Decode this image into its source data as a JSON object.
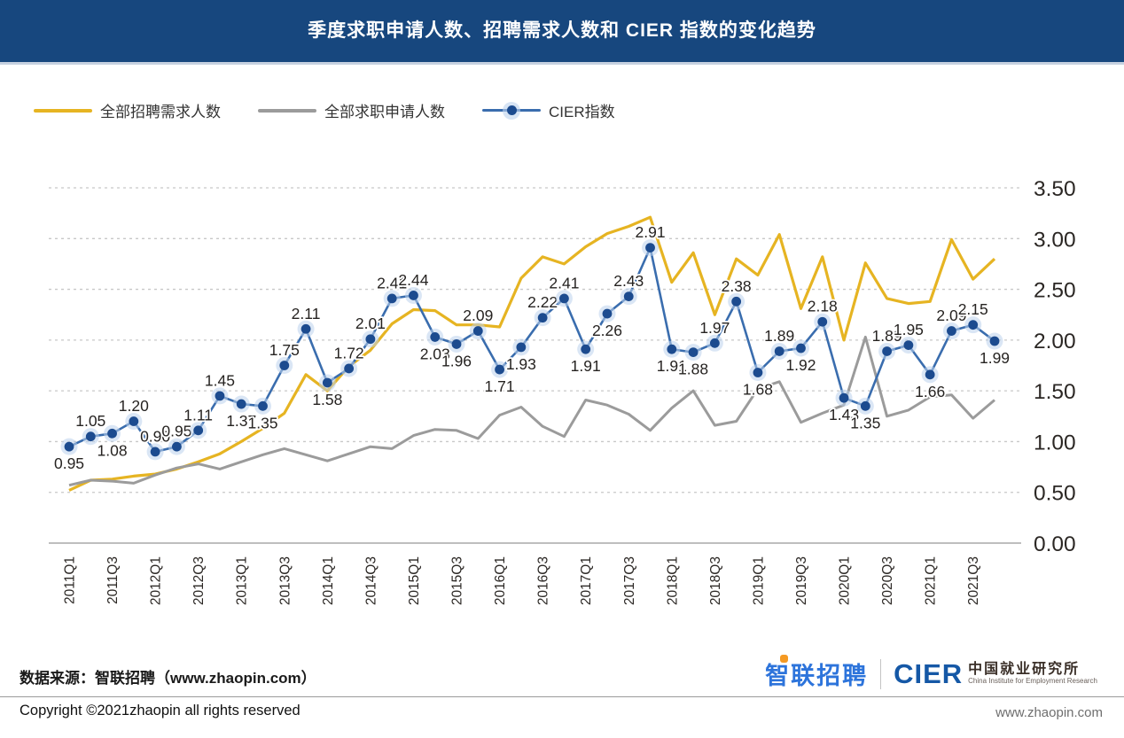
{
  "header": {
    "title": "季度求职申请人数、招聘需求人数和 CIER 指数的变化趋势",
    "bg_color": "#17477E"
  },
  "legend": {
    "position": "top-left",
    "items": [
      {
        "label": "全部招聘需求人数",
        "color": "#E6B422",
        "type": "line"
      },
      {
        "label": "全部求职申请人数",
        "color": "#9B9B9B",
        "type": "line"
      },
      {
        "label": "CIER指数",
        "color": "#3A6DAE",
        "marker_color": "#1C4B8F",
        "type": "line-marker"
      }
    ]
  },
  "chart_data": {
    "type": "line",
    "title": "季度求职申请人数、招聘需求人数和 CIER 指数的变化趋势",
    "categories": [
      "2011Q1",
      "2011Q2",
      "2011Q3",
      "2011Q4",
      "2012Q1",
      "2012Q2",
      "2012Q3",
      "2012Q4",
      "2013Q1",
      "2013Q2",
      "2013Q3",
      "2013Q4",
      "2014Q1",
      "2014Q2",
      "2014Q3",
      "2014Q4",
      "2015Q1",
      "2015Q2",
      "2015Q3",
      "2015Q4",
      "2016Q1",
      "2016Q2",
      "2016Q3",
      "2016Q4",
      "2017Q1",
      "2017Q2",
      "2017Q3",
      "2017Q4",
      "2018Q1",
      "2018Q2",
      "2018Q3",
      "2018Q4",
      "2019Q1",
      "2019Q2",
      "2019Q3",
      "2019Q4",
      "2020Q1",
      "2020Q2",
      "2020Q3",
      "2020Q4",
      "2021Q1",
      "2021Q2",
      "2021Q3",
      "2021Q4"
    ],
    "x_tick_every": 2,
    "ylim": [
      0,
      3.5
    ],
    "y_ticks": [
      {
        "value": 0.0,
        "label": "0.00"
      },
      {
        "value": 0.5,
        "label": "0.50"
      },
      {
        "value": 1.0,
        "label": "1.00"
      },
      {
        "value": 1.5,
        "label": "1.50"
      },
      {
        "value": 2.0,
        "label": "2.00"
      },
      {
        "value": 2.5,
        "label": "2.50"
      },
      {
        "value": 3.0,
        "label": "3.00"
      },
      {
        "value": 3.5,
        "label": "3.50"
      }
    ],
    "grid": "horizontal-dashed",
    "legend_position": "top-left",
    "series": [
      {
        "name": "全部招聘需求人数",
        "color": "#E6B422",
        "values": [
          0.52,
          0.62,
          0.63,
          0.66,
          0.68,
          0.73,
          0.8,
          0.88,
          1.0,
          1.13,
          1.28,
          1.66,
          1.5,
          1.74,
          1.9,
          2.16,
          2.3,
          2.29,
          2.15,
          2.15,
          2.13,
          2.61,
          2.82,
          2.75,
          2.92,
          3.05,
          3.12,
          3.21,
          2.57,
          2.86,
          2.25,
          2.8,
          2.64,
          3.04,
          2.31,
          2.82,
          2.0,
          2.76,
          2.41,
          2.36,
          2.38,
          2.99,
          2.6,
          2.8
        ]
      },
      {
        "name": "全部求职申请人数",
        "color": "#9B9B9B",
        "values": [
          0.57,
          0.62,
          0.61,
          0.59,
          0.67,
          0.74,
          0.78,
          0.73,
          0.8,
          0.87,
          0.93,
          0.87,
          0.81,
          0.88,
          0.95,
          0.93,
          1.06,
          1.12,
          1.11,
          1.03,
          1.26,
          1.34,
          1.15,
          1.05,
          1.41,
          1.36,
          1.27,
          1.11,
          1.33,
          1.5,
          1.16,
          1.2,
          1.52,
          1.59,
          1.19,
          1.28,
          1.36,
          2.03,
          1.25,
          1.31,
          1.44,
          1.46,
          1.23,
          1.41
        ]
      },
      {
        "name": "CIER指数",
        "color": "#3A6DAE",
        "marker_color": "#1C4B8F",
        "halo_color": "#BCD2EC",
        "data_labels": true,
        "label_below_indices": [
          0,
          2,
          8,
          9,
          12,
          17,
          18,
          20,
          21,
          24,
          25,
          28,
          29,
          32,
          34,
          36,
          37,
          40,
          43
        ],
        "values": [
          0.95,
          1.05,
          1.08,
          1.2,
          0.9,
          0.95,
          1.11,
          1.45,
          1.37,
          1.35,
          1.75,
          2.11,
          1.58,
          1.72,
          2.01,
          2.41,
          2.44,
          2.03,
          1.96,
          2.09,
          1.71,
          1.93,
          2.22,
          2.41,
          1.91,
          2.26,
          2.43,
          2.91,
          1.91,
          1.88,
          1.97,
          2.38,
          1.68,
          1.89,
          1.92,
          2.18,
          1.43,
          1.35,
          1.89,
          1.95,
          1.66,
          2.09,
          2.15,
          1.99
        ]
      }
    ]
  },
  "footer": {
    "source_text": "数据来源：智联招聘（www.zhaopin.com）",
    "zhaopin_logo_text": "智联招聘",
    "cier_logo_text": "CIER",
    "cier_cn_text": "中国就业研究所",
    "cier_en_text": "China Institute for Employment Research",
    "copyright_text": "Copyright ©2021zhaopin all rights reserved",
    "site_url": "www.zhaopin.com"
  }
}
